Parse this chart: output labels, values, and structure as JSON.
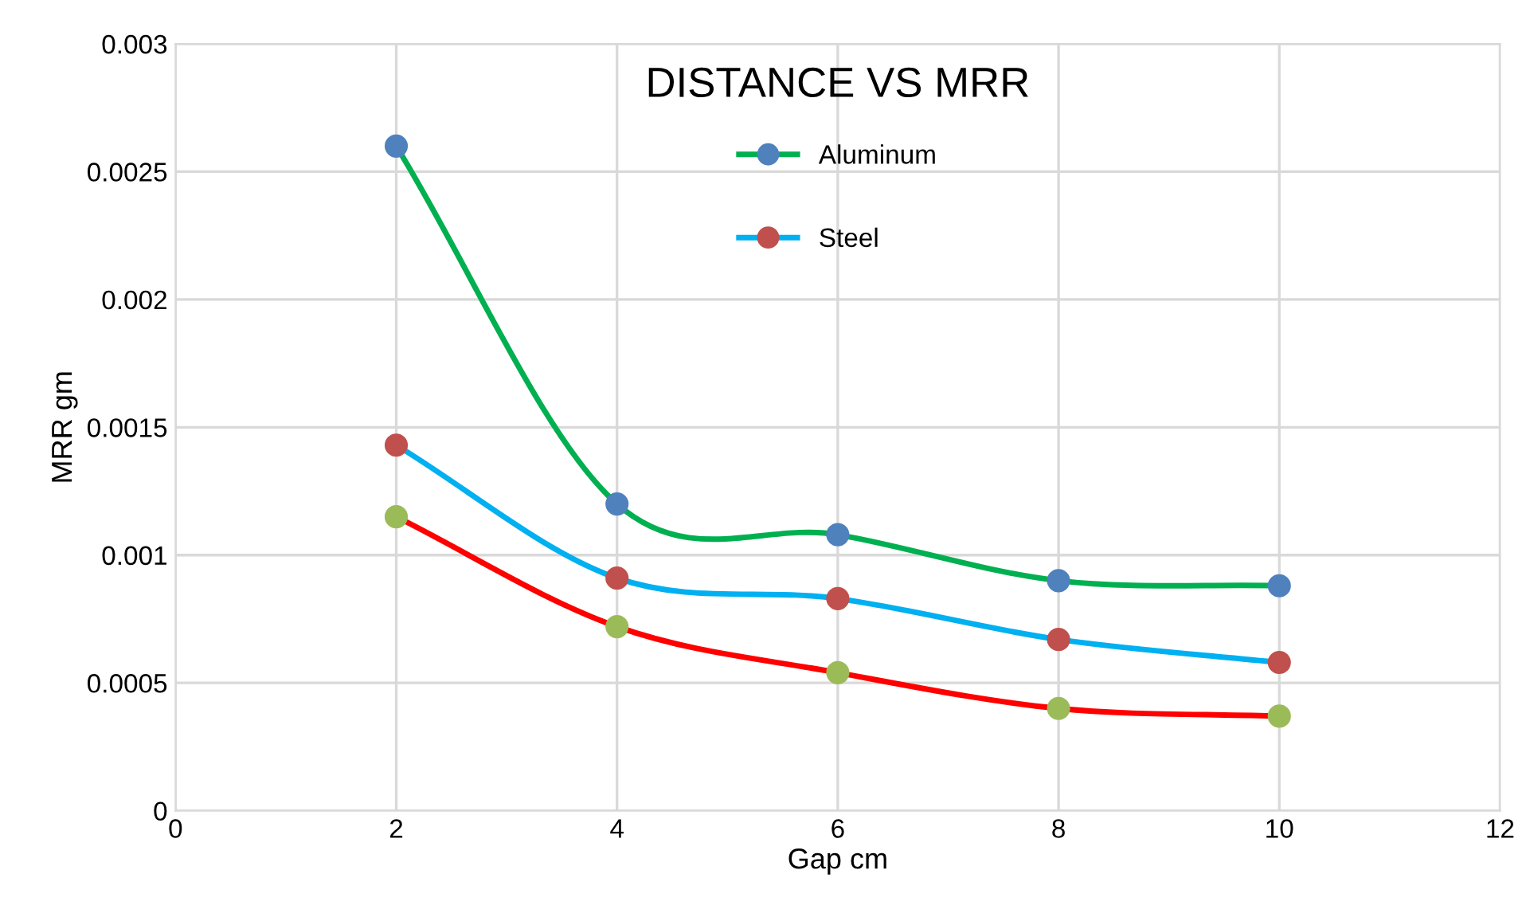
{
  "chart_data": {
    "type": "line",
    "title": "DISTANCE VS MRR",
    "xlabel": "Gap cm",
    "ylabel": "MRR gm",
    "x": [
      2,
      4,
      6,
      8,
      10
    ],
    "series": [
      {
        "name": "Aluminum",
        "color": "#00b050",
        "colors": [
          "#4f81bd",
          "#4f81bd",
          "#4f81bd",
          "#4f81bd",
          "#4f81bd"
        ],
        "values": [
          0.0026,
          0.0012,
          0.00108,
          0.0009,
          0.00088
        ]
      },
      {
        "name": "Steel",
        "color": "#00b0f0",
        "colors": [
          "#c0504d",
          "#c0504d",
          "#c0504d",
          "#c0504d",
          "#c0504d"
        ],
        "values": [
          0.00143,
          0.00091,
          0.00083,
          0.00067,
          0.00058
        ]
      },
      {
        "color": "#ff0000",
        "colors": [
          "#9bbb59",
          "#9bbb59",
          "#9bbb59",
          "#9bbb59",
          "#9bbb59"
        ],
        "values": [
          0.00115,
          0.00072,
          0.00054,
          0.0004,
          0.00037
        ]
      }
    ],
    "xlim": [
      0,
      12
    ],
    "xticks": [
      0,
      2,
      4,
      6,
      8,
      10,
      12
    ],
    "ylim": [
      0,
      0.003
    ],
    "yticks": [
      0,
      0.0005,
      0.001,
      0.0015,
      0.002,
      0.0025,
      0.003
    ],
    "grid": true,
    "legend": "top",
    "marker": "circle",
    "line_style": "solid"
  }
}
